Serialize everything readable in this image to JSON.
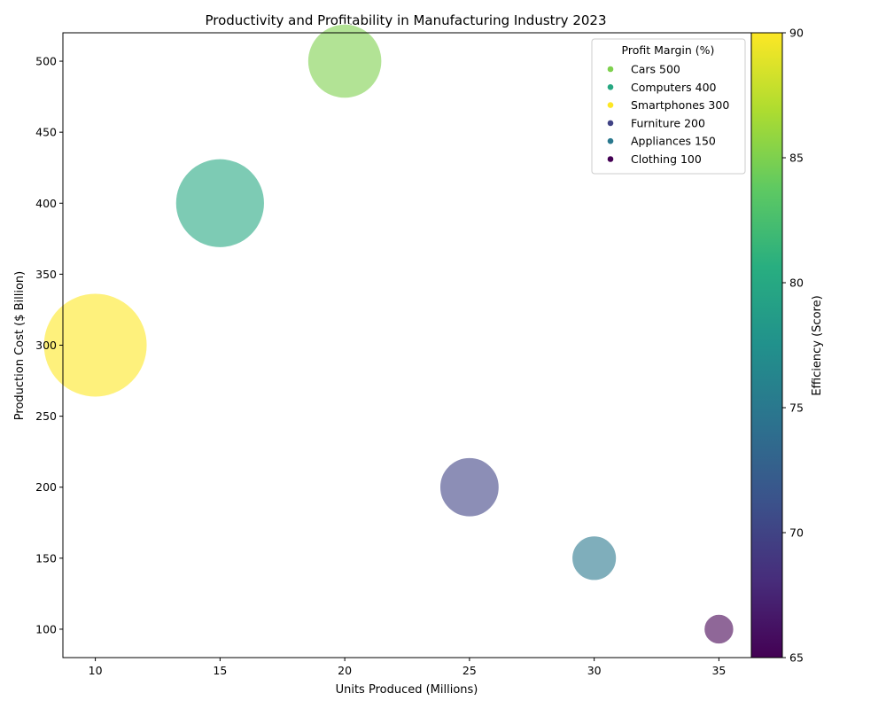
{
  "chart_data": {
    "type": "scatter",
    "title": "Productivity and Profitability in Manufacturing Industry 2023",
    "xlabel": "Units Produced (Millions)",
    "ylabel": "Production Cost ($ Billion)",
    "xlim": [
      8.7,
      36.3
    ],
    "ylim": [
      80,
      520
    ],
    "xticks": [
      10,
      15,
      20,
      25,
      30,
      35
    ],
    "yticks": [
      100,
      150,
      200,
      250,
      300,
      350,
      400,
      450,
      500
    ],
    "grid": false,
    "legend_title": "Profit Margin (%)",
    "legend_position": "top-right",
    "colorbar": {
      "label": "Efficiency (Score)",
      "range": [
        65,
        90
      ],
      "ticks": [
        65,
        70,
        75,
        80,
        85,
        90
      ],
      "colormap": "viridis"
    },
    "points": [
      {
        "label": "Cars 500",
        "x": 20,
        "y": 500,
        "efficiency": 85,
        "size_value": 25
      },
      {
        "label": "Computers 400",
        "x": 15,
        "y": 400,
        "efficiency": 80,
        "size_value": 30
      },
      {
        "label": "Smartphones 300",
        "x": 10,
        "y": 300,
        "efficiency": 90,
        "size_value": 35
      },
      {
        "label": "Furniture 200",
        "x": 25,
        "y": 200,
        "efficiency": 70,
        "size_value": 20
      },
      {
        "label": "Appliances 150",
        "x": 30,
        "y": 150,
        "efficiency": 75,
        "size_value": 15
      },
      {
        "label": "Clothing 100",
        "x": 35,
        "y": 100,
        "efficiency": 65,
        "size_value": 10
      }
    ]
  }
}
